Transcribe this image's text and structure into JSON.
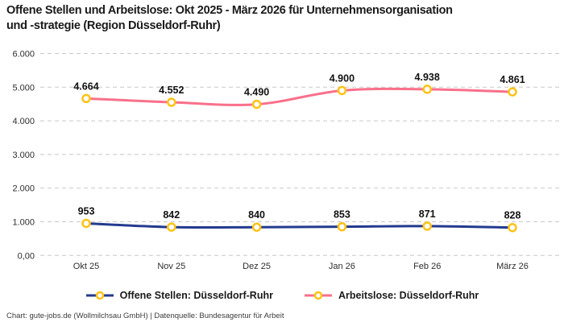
{
  "header": {
    "title_line1": "Offene Stellen und Arbeitslose: Okt 2025 - März 2026 für Unternehmensorganisation",
    "title_line2": "und -strategie (Region Düsseldorf-Ruhr)"
  },
  "footer": {
    "credit": "Chart: gute-jobs.de (Wollmilchsau GmbH) | Datenquelle: Bundesagentur für Arbeit"
  },
  "chart_data": {
    "type": "line",
    "title": "Offene Stellen und Arbeitslose: Okt 2025 - März 2026 für Unternehmensorganisation und -strategie (Region Düsseldorf-Ruhr)",
    "categories": [
      "Okt 25",
      "Nov 25",
      "Dez 25",
      "Jan 26",
      "Feb 26",
      "März 26"
    ],
    "series": [
      {
        "name": "Offene Stellen: Düsseldorf-Ruhr",
        "color": "#233a8f",
        "values": [
          953,
          842,
          840,
          853,
          871,
          828
        ],
        "labels": [
          "953",
          "842",
          "840",
          "853",
          "871",
          "828"
        ]
      },
      {
        "name": "Arbeitslose: Düsseldorf-Ruhr",
        "color": "#f9708a",
        "values": [
          4664,
          4552,
          4490,
          4900,
          4938,
          4861
        ],
        "labels": [
          "4.664",
          "4.552",
          "4.490",
          "4.900",
          "4.938",
          "4.861"
        ]
      }
    ],
    "ylim": [
      0,
      6000
    ],
    "yticks": [
      {
        "value": 0,
        "label": "0,00"
      },
      {
        "value": 1000,
        "label": "1.000"
      },
      {
        "value": 2000,
        "label": "2.000"
      },
      {
        "value": 3000,
        "label": "3.000"
      },
      {
        "value": 4000,
        "label": "4.000"
      },
      {
        "value": 5000,
        "label": "5.000"
      },
      {
        "value": 6000,
        "label": "6.000"
      }
    ],
    "grid": "horizontal-dashed",
    "legend_position": "bottom",
    "marker": {
      "fill": "#ffffff",
      "stroke": "#fdc216"
    }
  }
}
